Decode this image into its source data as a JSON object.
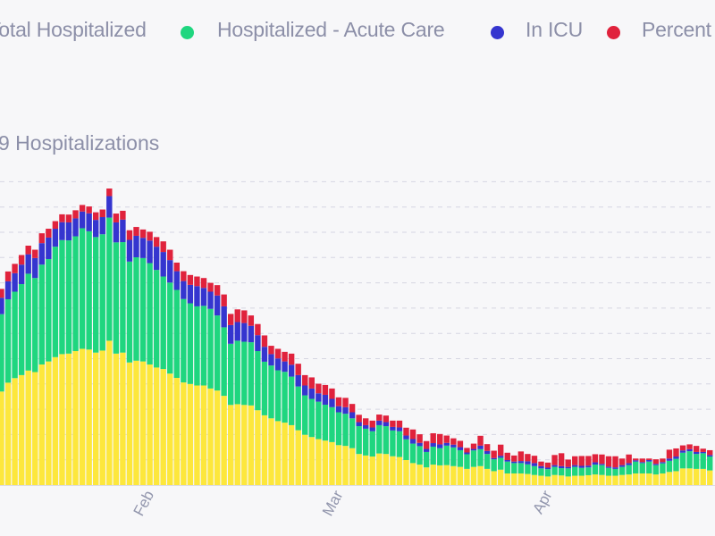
{
  "legend": [
    {
      "label": "Total Hospitalized",
      "color": "#fde73c"
    },
    {
      "label": "Hospitalized - Acute Care",
      "color": "#1fd67f"
    },
    {
      "label": "In ICU",
      "color": "#3535cf"
    },
    {
      "label": "Percent",
      "color": "#e0223c"
    }
  ],
  "title": "9 Hospitalizations",
  "chart_data": {
    "type": "bar",
    "stacked": true,
    "grid": true,
    "title": "9 Hospitalizations",
    "xlabel": "",
    "ylabel": "",
    "x_tick_labels": [
      {
        "label": "Feb",
        "date": "Feb 1"
      },
      {
        "label": "Mar",
        "date": "Mar 1"
      },
      {
        "label": "Apr",
        "date": "Apr 1"
      }
    ],
    "x": [
      "Jan 10",
      "Jan 11",
      "Jan 12",
      "Jan 13",
      "Jan 14",
      "Jan 15",
      "Jan 16",
      "Jan 17",
      "Jan 18",
      "Jan 19",
      "Jan 20",
      "Jan 21",
      "Jan 22",
      "Jan 23",
      "Jan 24",
      "Jan 25",
      "Jan 26",
      "Jan 27",
      "Jan 28",
      "Jan 29",
      "Jan 30",
      "Jan 31",
      "Feb 1",
      "Feb 2",
      "Feb 3",
      "Feb 4",
      "Feb 5",
      "Feb 6",
      "Feb 7",
      "Feb 8",
      "Feb 9",
      "Feb 10",
      "Feb 11",
      "Feb 12",
      "Feb 13",
      "Feb 14",
      "Feb 15",
      "Feb 16",
      "Feb 17",
      "Feb 18",
      "Feb 19",
      "Feb 20",
      "Feb 21",
      "Feb 22",
      "Feb 23",
      "Feb 24",
      "Feb 25",
      "Feb 26",
      "Feb 27",
      "Feb 28",
      "Mar 1",
      "Mar 2",
      "Mar 3",
      "Mar 4",
      "Mar 5",
      "Mar 6",
      "Mar 7",
      "Mar 8",
      "Mar 9",
      "Mar 10",
      "Mar 11",
      "Mar 12",
      "Mar 13",
      "Mar 14",
      "Mar 15",
      "Mar 16",
      "Mar 17",
      "Mar 18",
      "Mar 19",
      "Mar 20",
      "Mar 21",
      "Mar 22",
      "Mar 23",
      "Mar 24",
      "Mar 25",
      "Mar 26",
      "Mar 27",
      "Mar 28",
      "Mar 29",
      "Mar 30",
      "Mar 31",
      "Apr 1",
      "Apr 2",
      "Apr 3",
      "Apr 4",
      "Apr 5",
      "Apr 6",
      "Apr 7",
      "Apr 8",
      "Apr 9",
      "Apr 10",
      "Apr 11",
      "Apr 12",
      "Apr 13",
      "Apr 14",
      "Apr 15",
      "Apr 16",
      "Apr 17",
      "Apr 18",
      "Apr 19",
      "Apr 20",
      "Apr 21",
      "Apr 22",
      "Apr 23",
      "Apr 24",
      "Apr 25"
    ],
    "ylim": [
      0,
      1200
    ],
    "series": [
      {
        "name": "Total Hospitalized",
        "color": "#fde73c",
        "values": [
          370,
          405,
          423,
          435,
          453,
          447,
          477,
          489,
          506,
          518,
          520,
          530,
          539,
          536,
          524,
          532,
          571,
          520,
          524,
          485,
          492,
          489,
          477,
          465,
          459,
          441,
          424,
          406,
          400,
          394,
          394,
          382,
          374,
          353,
          317,
          320,
          317,
          315,
          296,
          276,
          264,
          253,
          247,
          237,
          217,
          199,
          190,
          182,
          176,
          170,
          158,
          155,
          146,
          123,
          117,
          113,
          125,
          123,
          114,
          111,
          99,
          87,
          81,
          70,
          81,
          78,
          79,
          75,
          72,
          64,
          72,
          75,
          64,
          55,
          61,
          46,
          46,
          46,
          44,
          40,
          37,
          34,
          40,
          38,
          34,
          37,
          37,
          39,
          42,
          40,
          37,
          37,
          40,
          42,
          46,
          46,
          46,
          42,
          46,
          52,
          55,
          66,
          66,
          64,
          64,
          58
        ]
      },
      {
        "name": "Hospitalized - Acute Care",
        "color": "#1fd67f",
        "values": [
          306,
          330,
          342,
          360,
          383,
          372,
          395,
          405,
          437,
          451,
          448,
          454,
          477,
          468,
          457,
          460,
          487,
          440,
          437,
          399,
          409,
          409,
          401,
          386,
          366,
          360,
          348,
          330,
          319,
          313,
          315,
          315,
          297,
          271,
          242,
          251,
          250,
          250,
          234,
          212,
          209,
          201,
          201,
          192,
          173,
          156,
          151,
          148,
          142,
          138,
          130,
          127,
          118,
          110,
          106,
          100,
          112,
          110,
          102,
          102,
          82,
          77,
          73,
          61,
          71,
          68,
          77,
          74,
          66,
          58,
          65,
          67,
          59,
          47,
          47,
          47,
          41,
          41,
          38,
          35,
          29,
          29,
          32,
          29,
          32,
          35,
          31,
          31,
          39,
          39,
          31,
          27,
          32,
          37,
          47,
          41,
          47,
          37,
          40,
          44,
          49,
          62,
          68,
          59,
          62,
          55
        ]
      },
      {
        "name": "In ICU",
        "color": "#3535cf",
        "values": [
          65,
          71,
          73,
          77,
          77,
          79,
          85,
          85,
          71,
          71,
          71,
          71,
          66,
          71,
          68,
          68,
          85,
          79,
          89,
          86,
          85,
          80,
          89,
          92,
          97,
          89,
          74,
          71,
          73,
          80,
          71,
          68,
          79,
          83,
          74,
          74,
          74,
          65,
          63,
          59,
          45,
          47,
          41,
          47,
          45,
          39,
          41,
          33,
          39,
          33,
          24,
          26,
          24,
          16,
          14,
          15,
          18,
          16,
          14,
          15,
          15,
          18,
          13,
          12,
          14,
          15,
          11,
          11,
          12,
          7,
          6,
          14,
          12,
          5,
          8,
          6,
          6,
          8,
          12,
          12,
          9,
          6,
          7,
          8,
          6,
          7,
          8,
          7,
          9,
          5,
          5,
          6,
          7,
          8,
          5,
          4,
          6,
          5,
          5,
          9,
          9,
          9,
          8,
          8,
          5,
          6
        ]
      },
      {
        "name": "Percent",
        "color": "#e0223c",
        "values": [
          35,
          39,
          37,
          38,
          34,
          33,
          39,
          35,
          30,
          31,
          31,
          32,
          26,
          27,
          30,
          30,
          30,
          35,
          35,
          38,
          35,
          33,
          35,
          38,
          42,
          41,
          34,
          39,
          39,
          38,
          39,
          35,
          41,
          47,
          44,
          50,
          50,
          41,
          44,
          45,
          33,
          38,
          38,
          44,
          45,
          41,
          44,
          38,
          39,
          41,
          35,
          37,
          33,
          29,
          27,
          27,
          24,
          26,
          25,
          27,
          31,
          38,
          34,
          31,
          39,
          41,
          29,
          25,
          25,
          18,
          21,
          39,
          27,
          29,
          44,
          29,
          24,
          38,
          29,
          29,
          18,
          20,
          40,
          51,
          29,
          35,
          39,
          38,
          32,
          37,
          41,
          44,
          26,
          34,
          7,
          14,
          6,
          18,
          14,
          35,
          32,
          20,
          19,
          24,
          13,
          19
        ]
      }
    ]
  }
}
